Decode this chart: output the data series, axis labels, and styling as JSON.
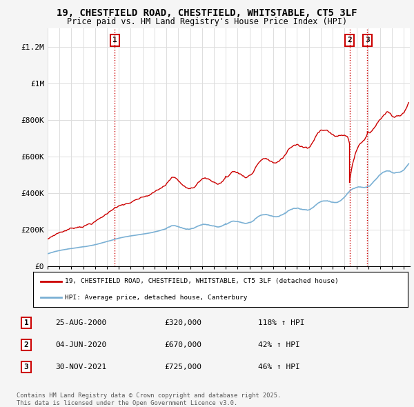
{
  "title": "19, CHESTFIELD ROAD, CHESTFIELD, WHITSTABLE, CT5 3LF",
  "subtitle": "Price paid vs. HM Land Registry's House Price Index (HPI)",
  "red_line_label": "19, CHESTFIELD ROAD, CHESTFIELD, WHITSTABLE, CT5 3LF (detached house)",
  "blue_line_label": "HPI: Average price, detached house, Canterbury",
  "transactions": [
    {
      "num": 1,
      "date": "25-AUG-2000",
      "price": 320000,
      "pct": "118%",
      "dir": "↑",
      "label": "HPI",
      "x_year": 2000.65
    },
    {
      "num": 2,
      "date": "04-JUN-2020",
      "price": 670000,
      "pct": "42%",
      "dir": "↑",
      "label": "HPI",
      "x_year": 2020.42
    },
    {
      "num": 3,
      "date": "30-NOV-2021",
      "price": 725000,
      "pct": "46%",
      "dir": "↑",
      "label": "HPI",
      "x_year": 2021.92
    }
  ],
  "footer": "Contains HM Land Registry data © Crown copyright and database right 2025.\nThis data is licensed under the Open Government Licence v3.0.",
  "ylim": [
    0,
    1300000
  ],
  "xlim_start": 1995,
  "xlim_end": 2025.5,
  "background_color": "#f5f5f5",
  "plot_background": "#ffffff",
  "red_color": "#cc0000",
  "blue_color": "#7ab0d4",
  "grid_color": "#dddddd",
  "vline_color": "#cc0000",
  "vline_style": ":",
  "box_color": "#cc0000"
}
